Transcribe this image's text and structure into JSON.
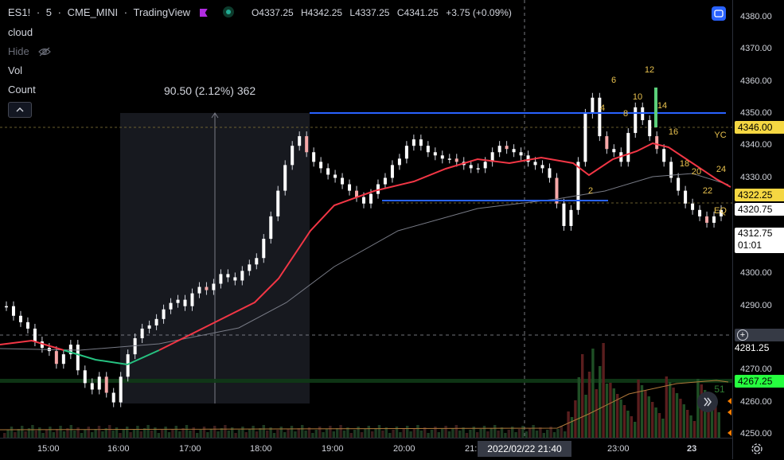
{
  "header": {
    "symbol": "ES1!",
    "interval": "5",
    "exchange": "CME_MINI",
    "source": "TradingView",
    "ohlc": {
      "open": "O4337.25",
      "high": "H4342.25",
      "low": "L4337.25",
      "close": "C4341.25",
      "change": "+3.75 (+0.09%)"
    }
  },
  "indicators": {
    "cloud": "cloud",
    "hide": "Hide",
    "vol": "Vol",
    "count": "Count"
  },
  "measure": {
    "label": "90.50 (2.12%) 362"
  },
  "price_axis": {
    "ticks": [
      "4380.00",
      "4370.00",
      "4360.00",
      "4350.00",
      "4340.00",
      "4330.00",
      "4320.00",
      "4310.00",
      "4300.00",
      "4290.00",
      "4280.00",
      "4270.00",
      "4260.00",
      "4250.00"
    ],
    "tags": {
      "level_high": "4346.00",
      "level_mid": "4322.25",
      "last_price": "4320.75",
      "countdown_price": "4312.75",
      "countdown_time": "01:01",
      "crosshair_price": "4281.25",
      "vol_level": "4267.25"
    }
  },
  "time_axis": {
    "ticks": [
      "15:00",
      "16:00",
      "17:00",
      "18:00",
      "19:00",
      "20:00",
      "21:",
      "23:00",
      "23"
    ],
    "crosshair": "2022/02/22  21:40"
  },
  "annotations": {
    "counts": [
      "6",
      "12",
      "4",
      "10",
      "8",
      "14",
      "16",
      "18",
      "20",
      "24",
      "22",
      "2"
    ],
    "yc": "YC",
    "eq": "EQ",
    "vol_count": "51"
  },
  "colors": {
    "up": "#ffffff",
    "down": "#ffffff",
    "ema": "#f23645",
    "ema_green": "#26c281",
    "sma": "#787b86",
    "level_lines": "#2962ff",
    "price_tag_green": "#26ff3f",
    "price_tag_yellow": "#f5d742",
    "annotation_yellow": "#e8c14e"
  }
}
